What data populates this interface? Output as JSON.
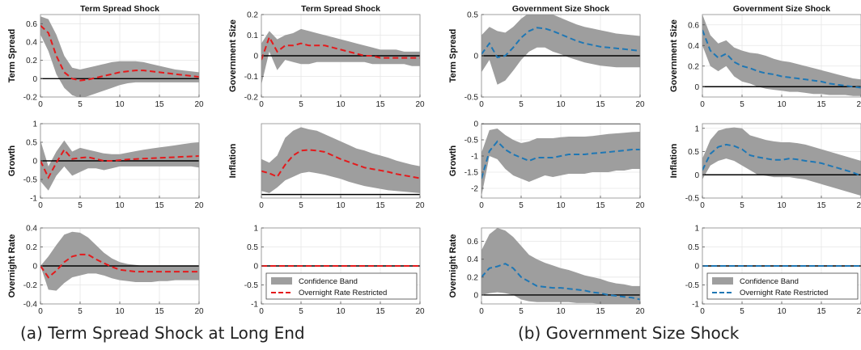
{
  "captions": {
    "a": "(a) Term Spread Shock at Long End",
    "b": "(b) Government Size Shock"
  },
  "colors": {
    "band": "#9e9e9e",
    "axis_zero": "#000000",
    "red": "#e41a1c",
    "blue": "#1f77b4"
  },
  "legend": {
    "band_label": "Confidence Band",
    "line_label": "Overnight Rate Restricted"
  },
  "chart_data": [
    {
      "id": "a-term-term",
      "group": "a",
      "col": 0,
      "row": 0,
      "type": "area",
      "title": "Term Spread Shock",
      "ylabel": "Term Spread",
      "xlim": [
        0,
        20
      ],
      "ylim": [
        -0.2,
        0.7
      ],
      "xticks": [
        0,
        5,
        10,
        15,
        20
      ],
      "yticks": [
        -0.2,
        0,
        0.2,
        0.4,
        0.6
      ],
      "ytick_labels": [
        "-0.2",
        "0",
        "0.2",
        "0.4",
        "0.6"
      ],
      "color": "red",
      "grid": true,
      "legend": false,
      "x": [
        0,
        1,
        2,
        3,
        4,
        5,
        6,
        7,
        8,
        9,
        10,
        11,
        12,
        13,
        14,
        15,
        16,
        17,
        18,
        19,
        20
      ],
      "upper": [
        0.68,
        0.65,
        0.48,
        0.25,
        0.12,
        0.1,
        0.12,
        0.14,
        0.16,
        0.18,
        0.19,
        0.19,
        0.19,
        0.18,
        0.16,
        0.14,
        0.12,
        0.1,
        0.09,
        0.08,
        0.07
      ],
      "lower": [
        0.48,
        0.3,
        0.05,
        -0.1,
        -0.18,
        -0.21,
        -0.19,
        -0.16,
        -0.13,
        -0.1,
        -0.07,
        -0.05,
        -0.04,
        -0.04,
        -0.04,
        -0.04,
        -0.04,
        -0.04,
        -0.04,
        -0.04,
        -0.04
      ],
      "line": [
        0.58,
        0.5,
        0.25,
        0.07,
        0.0,
        -0.02,
        -0.01,
        0.01,
        0.03,
        0.05,
        0.07,
        0.08,
        0.09,
        0.09,
        0.08,
        0.07,
        0.06,
        0.05,
        0.04,
        0.03,
        0.02
      ]
    },
    {
      "id": "a-term-gov",
      "group": "a",
      "col": 1,
      "row": 0,
      "type": "area",
      "title": "Term Spread Shock",
      "ylabel": "Government Size",
      "xlim": [
        0,
        20
      ],
      "ylim": [
        -0.2,
        0.2
      ],
      "xticks": [
        0,
        5,
        10,
        15,
        20
      ],
      "yticks": [
        -0.2,
        -0.1,
        0,
        0.1,
        0.2
      ],
      "ytick_labels": [
        "-0.2",
        "-0.1",
        "0",
        "0.1",
        "0.2"
      ],
      "color": "red",
      "grid": true,
      "legend": false,
      "x": [
        0,
        1,
        2,
        3,
        4,
        5,
        6,
        7,
        8,
        9,
        10,
        11,
        12,
        13,
        14,
        15,
        16,
        17,
        18,
        19,
        20
      ],
      "upper": [
        0.06,
        0.12,
        0.08,
        0.1,
        0.11,
        0.13,
        0.12,
        0.11,
        0.1,
        0.09,
        0.08,
        0.07,
        0.06,
        0.05,
        0.04,
        0.03,
        0.03,
        0.03,
        0.02,
        0.02,
        0.02
      ],
      "lower": [
        -0.14,
        0.02,
        -0.07,
        -0.02,
        -0.03,
        -0.04,
        -0.04,
        -0.03,
        -0.03,
        -0.03,
        -0.03,
        -0.03,
        -0.03,
        -0.03,
        -0.04,
        -0.04,
        -0.04,
        -0.04,
        -0.04,
        -0.05,
        -0.05
      ],
      "line": [
        -0.02,
        0.09,
        0.02,
        0.05,
        0.05,
        0.06,
        0.05,
        0.05,
        0.05,
        0.04,
        0.03,
        0.02,
        0.01,
        0.0,
        0.0,
        -0.01,
        -0.01,
        -0.01,
        -0.01,
        -0.01,
        -0.01
      ]
    },
    {
      "id": "a-term-growth",
      "group": "a",
      "col": 0,
      "row": 1,
      "type": "area",
      "title": "",
      "ylabel": "Growth",
      "xlim": [
        0,
        20
      ],
      "ylim": [
        -1,
        1
      ],
      "xticks": [
        0,
        5,
        10,
        15,
        20
      ],
      "yticks": [
        -1,
        -0.5,
        0,
        0.5,
        1
      ],
      "ytick_labels": [
        "-1",
        "-0.5",
        "0",
        "0.5",
        "1"
      ],
      "color": "red",
      "grid": true,
      "legend": false,
      "x": [
        0,
        1,
        2,
        3,
        4,
        5,
        6,
        7,
        8,
        9,
        10,
        11,
        12,
        13,
        14,
        15,
        16,
        17,
        18,
        19,
        20
      ],
      "upper": [
        0.55,
        -0.15,
        0.25,
        0.55,
        0.25,
        0.35,
        0.3,
        0.25,
        0.2,
        0.18,
        0.18,
        0.22,
        0.26,
        0.3,
        0.33,
        0.36,
        0.39,
        0.42,
        0.45,
        0.48,
        0.5
      ],
      "lower": [
        -0.55,
        -0.8,
        -0.4,
        -0.15,
        -0.4,
        -0.3,
        -0.2,
        -0.2,
        -0.25,
        -0.2,
        -0.15,
        -0.15,
        -0.15,
        -0.15,
        -0.15,
        -0.15,
        -0.15,
        -0.15,
        -0.15,
        -0.15,
        -0.18
      ],
      "line": [
        0.0,
        -0.45,
        -0.05,
        0.3,
        0.05,
        0.08,
        0.1,
        0.05,
        0.0,
        0.0,
        0.02,
        0.04,
        0.05,
        0.06,
        0.07,
        0.08,
        0.09,
        0.1,
        0.11,
        0.12,
        0.13
      ]
    },
    {
      "id": "a-term-infl",
      "group": "a",
      "col": 1,
      "row": 1,
      "type": "area",
      "title": "",
      "ylabel": "Inflation",
      "xlim": [
        0,
        20
      ],
      "ylim": [
        -0.05,
        1.0
      ],
      "xticks": [
        0,
        5,
        10,
        15,
        20
      ],
      "yticks": [],
      "ytick_labels": [],
      "color": "red",
      "grid": true,
      "legend": false,
      "x": [
        0,
        1,
        2,
        3,
        4,
        5,
        6,
        7,
        8,
        9,
        10,
        11,
        12,
        13,
        14,
        15,
        16,
        17,
        18,
        19,
        20
      ],
      "upper": [
        0.5,
        0.45,
        0.55,
        0.8,
        0.9,
        0.95,
        0.92,
        0.9,
        0.85,
        0.8,
        0.75,
        0.7,
        0.65,
        0.62,
        0.58,
        0.55,
        0.52,
        0.48,
        0.45,
        0.42,
        0.4
      ],
      "lower": [
        0.05,
        0.02,
        0.1,
        0.2,
        0.25,
        0.3,
        0.32,
        0.3,
        0.28,
        0.25,
        0.22,
        0.18,
        0.15,
        0.12,
        0.1,
        0.08,
        0.06,
        0.05,
        0.04,
        0.03,
        0.02
      ],
      "line": [
        0.33,
        0.3,
        0.25,
        0.42,
        0.55,
        0.62,
        0.63,
        0.62,
        0.6,
        0.55,
        0.5,
        0.46,
        0.42,
        0.38,
        0.36,
        0.34,
        0.32,
        0.29,
        0.27,
        0.25,
        0.23
      ]
    },
    {
      "id": "a-term-onr",
      "group": "a",
      "col": 0,
      "row": 2,
      "type": "area",
      "title": "",
      "ylabel": "Overnight Rate",
      "xlim": [
        0,
        20
      ],
      "ylim": [
        -0.4,
        0.4
      ],
      "xticks": [
        0,
        5,
        10,
        15,
        20
      ],
      "yticks": [
        -0.4,
        -0.2,
        0,
        0.2,
        0.4
      ],
      "ytick_labels": [
        "-0.4",
        "-0.2",
        "0",
        "0.2",
        "0.4"
      ],
      "color": "red",
      "grid": true,
      "legend": false,
      "x": [
        0,
        1,
        2,
        3,
        4,
        5,
        6,
        7,
        8,
        9,
        10,
        11,
        12,
        13,
        14,
        15,
        16,
        17,
        18,
        19,
        20
      ],
      "upper": [
        0.0,
        0.1,
        0.22,
        0.33,
        0.36,
        0.35,
        0.3,
        0.22,
        0.14,
        0.08,
        0.04,
        0.02,
        0.01,
        0.0,
        0.0,
        0.0,
        0.0,
        0.0,
        0.0,
        0.0,
        0.0
      ],
      "lower": [
        0.0,
        -0.25,
        -0.26,
        -0.18,
        -0.12,
        -0.1,
        -0.08,
        -0.08,
        -0.1,
        -0.13,
        -0.15,
        -0.16,
        -0.17,
        -0.17,
        -0.17,
        -0.16,
        -0.16,
        -0.15,
        -0.15,
        -0.15,
        -0.15
      ],
      "line": [
        0.0,
        -0.12,
        -0.05,
        0.04,
        0.1,
        0.12,
        0.12,
        0.07,
        0.03,
        -0.01,
        -0.04,
        -0.05,
        -0.06,
        -0.06,
        -0.06,
        -0.06,
        -0.06,
        -0.06,
        -0.06,
        -0.06,
        -0.06
      ]
    },
    {
      "id": "a-legend",
      "group": "a",
      "col": 1,
      "row": 2,
      "type": "line",
      "title": "",
      "ylabel": "",
      "xlim": [
        0,
        20
      ],
      "ylim": [
        -1,
        1
      ],
      "xticks": [
        0,
        5,
        10,
        15,
        20
      ],
      "yticks": [
        -1,
        -0.5,
        0,
        0.5,
        1
      ],
      "ytick_labels": [
        "-1",
        "-0.5",
        "0",
        "0.5",
        "1"
      ],
      "color": "red",
      "grid": true,
      "legend": true,
      "legend_position": "bottom-left",
      "x": [
        0,
        20
      ],
      "upper": [],
      "lower": [],
      "line": [
        0,
        0
      ]
    },
    {
      "id": "b-gov-term",
      "group": "b",
      "col": 0,
      "row": 0,
      "type": "area",
      "title": "Government Size Shock",
      "ylabel": "Term Spread",
      "xlim": [
        0,
        20
      ],
      "ylim": [
        -0.5,
        0.5
      ],
      "xticks": [
        0,
        5,
        10,
        15,
        20
      ],
      "yticks": [
        -0.5,
        0,
        0.5
      ],
      "ytick_labels": [
        "-0.5",
        "0",
        "0.5"
      ],
      "color": "blue",
      "grid": true,
      "legend": false,
      "x": [
        0,
        1,
        2,
        3,
        4,
        5,
        6,
        7,
        8,
        9,
        10,
        11,
        12,
        13,
        14,
        15,
        16,
        17,
        18,
        19,
        20
      ],
      "upper": [
        0.25,
        0.35,
        0.3,
        0.28,
        0.35,
        0.45,
        0.52,
        0.55,
        0.53,
        0.5,
        0.46,
        0.42,
        0.38,
        0.35,
        0.33,
        0.31,
        0.29,
        0.27,
        0.26,
        0.25,
        0.24
      ],
      "lower": [
        -0.2,
        -0.05,
        -0.35,
        -0.3,
        -0.18,
        -0.05,
        0.05,
        0.1,
        0.1,
        0.05,
        0.02,
        -0.02,
        -0.05,
        -0.08,
        -0.1,
        -0.12,
        -0.13,
        -0.14,
        -0.14,
        -0.14,
        -0.14
      ],
      "line": [
        0.02,
        0.15,
        -0.02,
        0.0,
        0.1,
        0.22,
        0.3,
        0.34,
        0.33,
        0.3,
        0.26,
        0.22,
        0.18,
        0.15,
        0.13,
        0.11,
        0.1,
        0.09,
        0.08,
        0.07,
        0.06
      ]
    },
    {
      "id": "b-gov-gov",
      "group": "b",
      "col": 1,
      "row": 0,
      "type": "area",
      "title": "Government Size Shock",
      "ylabel": "Government Size",
      "xlim": [
        0,
        20
      ],
      "ylim": [
        -0.1,
        0.7
      ],
      "xticks": [
        0,
        5,
        10,
        15,
        20
      ],
      "yticks": [
        0,
        0.2,
        0.4,
        0.6
      ],
      "ytick_labels": [
        "0",
        "0.2",
        "0.4",
        "0.6"
      ],
      "color": "blue",
      "grid": true,
      "legend": false,
      "x": [
        0,
        1,
        2,
        3,
        4,
        5,
        6,
        7,
        8,
        9,
        10,
        11,
        12,
        13,
        14,
        15,
        16,
        17,
        18,
        19,
        20
      ],
      "upper": [
        0.7,
        0.5,
        0.42,
        0.45,
        0.38,
        0.35,
        0.33,
        0.32,
        0.3,
        0.27,
        0.25,
        0.24,
        0.22,
        0.2,
        0.18,
        0.16,
        0.14,
        0.12,
        0.1,
        0.08,
        0.07
      ],
      "lower": [
        0.4,
        0.2,
        0.15,
        0.2,
        0.1,
        0.05,
        0.03,
        0.0,
        -0.02,
        -0.03,
        -0.04,
        -0.05,
        -0.05,
        -0.06,
        -0.07,
        -0.07,
        -0.08,
        -0.08,
        -0.08,
        -0.09,
        -0.09
      ],
      "line": [
        0.55,
        0.35,
        0.28,
        0.32,
        0.24,
        0.2,
        0.18,
        0.15,
        0.13,
        0.12,
        0.1,
        0.09,
        0.08,
        0.07,
        0.06,
        0.05,
        0.03,
        0.02,
        0.01,
        0.0,
        -0.01
      ]
    },
    {
      "id": "b-gov-growth",
      "group": "b",
      "col": 0,
      "row": 1,
      "type": "area",
      "title": "",
      "ylabel": "Growth",
      "xlim": [
        0,
        20
      ],
      "ylim": [
        -2.3,
        0
      ],
      "xticks": [
        0,
        5,
        10,
        15,
        20
      ],
      "yticks": [
        -2,
        -1.5,
        -1,
        -0.5,
        0
      ],
      "ytick_labels": [
        "-2",
        "-1.5",
        "-1",
        "-0.5",
        "0"
      ],
      "color": "blue",
      "grid": true,
      "legend": false,
      "x": [
        0,
        1,
        2,
        3,
        4,
        5,
        6,
        7,
        8,
        9,
        10,
        11,
        12,
        13,
        14,
        15,
        16,
        17,
        18,
        19,
        20
      ],
      "upper": [
        -0.9,
        -0.2,
        -0.15,
        -0.35,
        -0.5,
        -0.6,
        -0.55,
        -0.45,
        -0.45,
        -0.45,
        -0.42,
        -0.4,
        -0.4,
        -0.4,
        -0.38,
        -0.35,
        -0.32,
        -0.3,
        -0.28,
        -0.26,
        -0.25
      ],
      "lower": [
        -2.25,
        -1.0,
        -1.1,
        -1.4,
        -1.6,
        -1.7,
        -1.8,
        -1.7,
        -1.6,
        -1.65,
        -1.6,
        -1.55,
        -1.55,
        -1.55,
        -1.5,
        -1.5,
        -1.5,
        -1.45,
        -1.45,
        -1.4,
        -1.4
      ],
      "line": [
        -1.7,
        -0.85,
        -0.55,
        -0.8,
        -0.95,
        -1.05,
        -1.15,
        -1.05,
        -1.05,
        -1.05,
        -1.0,
        -0.95,
        -0.95,
        -0.95,
        -0.92,
        -0.9,
        -0.88,
        -0.85,
        -0.83,
        -0.8,
        -0.8
      ]
    },
    {
      "id": "b-gov-infl",
      "group": "b",
      "col": 1,
      "row": 1,
      "type": "area",
      "title": "",
      "ylabel": "Inflation",
      "xlim": [
        0,
        20
      ],
      "ylim": [
        -0.5,
        1.1
      ],
      "xticks": [
        0,
        5,
        10,
        15,
        20
      ],
      "yticks": [
        -0.5,
        0,
        0.5,
        1
      ],
      "ytick_labels": [
        "-0.5",
        "0",
        "0.5",
        "1"
      ],
      "color": "blue",
      "grid": true,
      "legend": false,
      "x": [
        0,
        1,
        2,
        3,
        4,
        5,
        6,
        7,
        8,
        9,
        10,
        11,
        12,
        13,
        14,
        15,
        16,
        17,
        18,
        19,
        20
      ],
      "upper": [
        0.35,
        0.75,
        0.95,
        1.0,
        1.02,
        1.0,
        0.85,
        0.8,
        0.75,
        0.72,
        0.7,
        0.7,
        0.68,
        0.65,
        0.6,
        0.55,
        0.5,
        0.45,
        0.4,
        0.35,
        0.3
      ],
      "lower": [
        -0.1,
        0.2,
        0.3,
        0.35,
        0.3,
        0.2,
        0.1,
        0.0,
        -0.02,
        -0.05,
        -0.05,
        -0.05,
        -0.08,
        -0.1,
        -0.15,
        -0.2,
        -0.25,
        -0.3,
        -0.35,
        -0.4,
        -0.45
      ],
      "line": [
        0.1,
        0.45,
        0.6,
        0.65,
        0.62,
        0.55,
        0.42,
        0.38,
        0.35,
        0.32,
        0.32,
        0.35,
        0.33,
        0.3,
        0.28,
        0.25,
        0.2,
        0.15,
        0.1,
        0.05,
        -0.02
      ]
    },
    {
      "id": "b-gov-onr",
      "group": "b",
      "col": 0,
      "row": 2,
      "type": "area",
      "title": "",
      "ylabel": "Overnight Rate",
      "xlim": [
        0,
        20
      ],
      "ylim": [
        -0.1,
        0.75
      ],
      "xticks": [
        0,
        5,
        10,
        15,
        20
      ],
      "yticks": [
        0,
        0.2,
        0.4,
        0.6
      ],
      "ytick_labels": [
        "0",
        "0.2",
        "0.4",
        "0.6"
      ],
      "color": "blue",
      "grid": true,
      "legend": false,
      "x": [
        0,
        1,
        2,
        3,
        4,
        5,
        6,
        7,
        8,
        9,
        10,
        11,
        12,
        13,
        14,
        15,
        16,
        17,
        18,
        19,
        20
      ],
      "upper": [
        0.5,
        0.68,
        0.75,
        0.72,
        0.65,
        0.55,
        0.45,
        0.4,
        0.36,
        0.33,
        0.3,
        0.28,
        0.25,
        0.22,
        0.2,
        0.18,
        0.15,
        0.13,
        0.12,
        0.1,
        0.1
      ],
      "lower": [
        0.0,
        0.02,
        0.03,
        0.02,
        0.0,
        -0.05,
        -0.07,
        -0.08,
        -0.08,
        -0.08,
        -0.08,
        -0.08,
        -0.09,
        -0.09,
        -0.09,
        -0.1,
        -0.1,
        -0.1,
        -0.1,
        -0.1,
        -0.1
      ],
      "line": [
        0.2,
        0.3,
        0.32,
        0.35,
        0.3,
        0.2,
        0.15,
        0.1,
        0.09,
        0.08,
        0.08,
        0.07,
        0.06,
        0.05,
        0.03,
        0.02,
        0.0,
        -0.01,
        -0.02,
        -0.03,
        -0.05
      ]
    },
    {
      "id": "b-legend",
      "group": "b",
      "col": 1,
      "row": 2,
      "type": "line",
      "title": "",
      "ylabel": "",
      "xlim": [
        0,
        20
      ],
      "ylim": [
        -1,
        1
      ],
      "xticks": [
        0,
        5,
        10,
        15,
        20
      ],
      "yticks": [
        -1,
        -0.5,
        0,
        0.5,
        1
      ],
      "ytick_labels": [
        "-1",
        "-0.5",
        "0",
        "0.5",
        "1"
      ],
      "color": "blue",
      "grid": true,
      "legend": true,
      "legend_position": "bottom-left",
      "x": [
        0,
        20
      ],
      "upper": [],
      "lower": [],
      "line": [
        0,
        0
      ]
    }
  ]
}
